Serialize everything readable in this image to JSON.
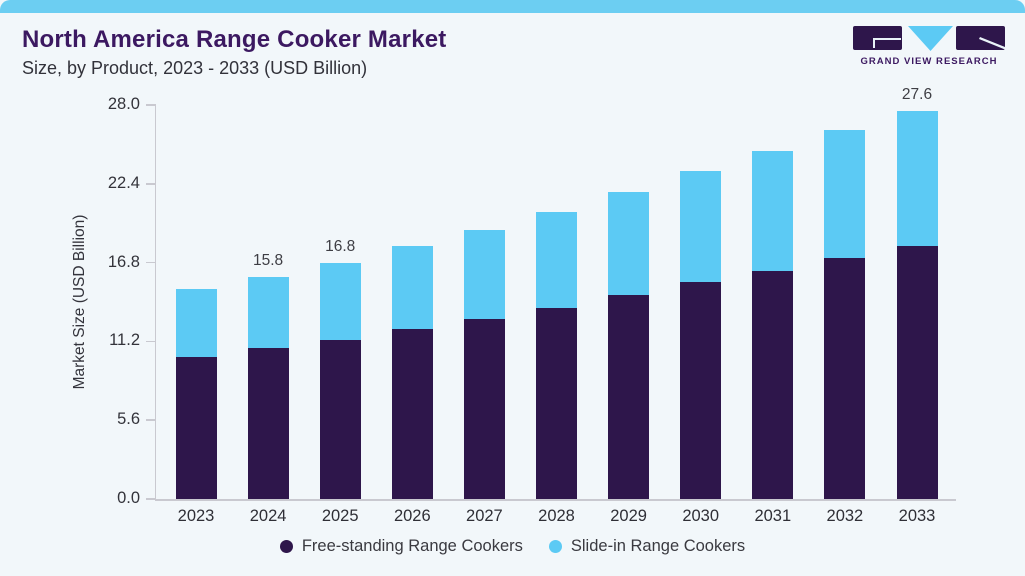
{
  "page": {
    "background": "#F2F7FA",
    "accent_bar_color": "#6CCEF2"
  },
  "header": {
    "title": "North America Range Cooker Market",
    "subtitle": "Size, by Product, 2023 - 2033 (USD Billion)"
  },
  "logo": {
    "text": "GRAND VIEW RESEARCH",
    "icon": "gvr-logo-icon",
    "purple": "#2E164B",
    "blue": "#5CCAF4"
  },
  "chart_data": {
    "type": "bar",
    "stacked": true,
    "title": "North America Range Cooker Market",
    "subtitle": "Size, by Product, 2023 - 2033 (USD Billion)",
    "xlabel": "",
    "ylabel": "Market Size (USD Billion)",
    "ylim": [
      0,
      28
    ],
    "ytick_labels": [
      "0.0",
      "5.6",
      "11.2",
      "16.8",
      "22.4",
      "28.0"
    ],
    "grid": false,
    "legend_position": "bottom",
    "categories": [
      "2023",
      "2024",
      "2025",
      "2026",
      "2027",
      "2028",
      "2029",
      "2030",
      "2031",
      "2032",
      "2033"
    ],
    "series": [
      {
        "name": "Free-standing Range Cookers",
        "color": "#2E164B",
        "values": [
          10.1,
          10.7,
          11.3,
          12.1,
          12.8,
          13.6,
          14.5,
          15.4,
          16.2,
          17.1,
          18.0
        ]
      },
      {
        "name": "Slide-in Range Cookers",
        "color": "#5CCAF4",
        "values": [
          4.8,
          5.1,
          5.5,
          5.9,
          6.3,
          6.8,
          7.3,
          7.9,
          8.5,
          9.1,
          9.6
        ]
      }
    ],
    "bar_total_labels": {
      "2024": "15.8",
      "2025": "16.8",
      "2033": "27.6"
    }
  }
}
